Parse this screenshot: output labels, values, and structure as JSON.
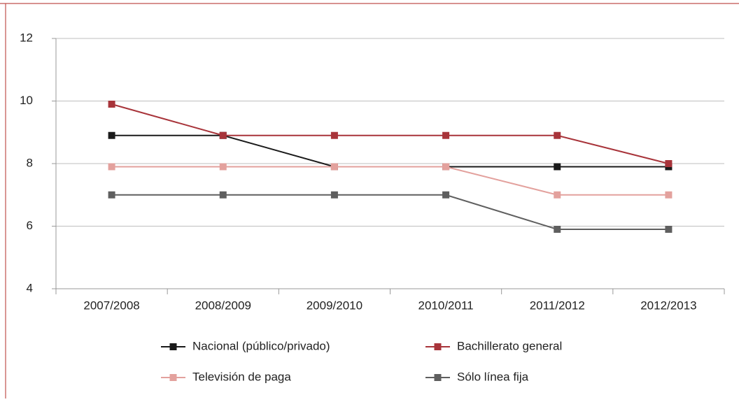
{
  "chart_data": {
    "type": "line",
    "categories": [
      "2007/2008",
      "2008/2009",
      "2009/2010",
      "2010/2011",
      "2011/2012",
      "2012/2013"
    ],
    "series": [
      {
        "name": "Nacional (público/privado)",
        "color": "#1a1a1a",
        "values": [
          8.9,
          8.9,
          7.9,
          7.9,
          7.9,
          7.9
        ]
      },
      {
        "name": "Bachillerato general",
        "color": "#a8343a",
        "values": [
          9.9,
          8.9,
          8.9,
          8.9,
          8.9,
          8
        ]
      },
      {
        "name": "Televisión de paga",
        "color": "#e3a19d",
        "values": [
          7.9,
          7.9,
          7.9,
          7.9,
          7,
          7
        ]
      },
      {
        "name": "Sólo línea fija",
        "color": "#5f5f5f",
        "values": [
          7,
          7,
          7,
          7,
          5.9,
          5.9
        ]
      }
    ],
    "ylim": [
      4,
      12
    ],
    "yticks": [
      4,
      6,
      8,
      10,
      12
    ],
    "grid": true,
    "legend": "bottom"
  }
}
